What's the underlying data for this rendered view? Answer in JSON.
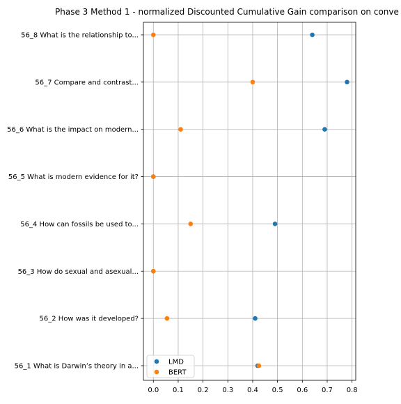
{
  "chart_data": {
    "type": "scatter",
    "title": "Phase 3 Method 1 - normalized Discounted Cumulative Gain comparison on conve",
    "xlabel": "",
    "ylabel": "",
    "xlim": [
      -0.04,
      0.815
    ],
    "xticks": [
      0.0,
      0.1,
      0.2,
      0.3,
      0.4,
      0.5,
      0.6,
      0.7,
      0.8
    ],
    "xtick_labels": [
      "0.0",
      "0.1",
      "0.2",
      "0.3",
      "0.4",
      "0.5",
      "0.6",
      "0.7",
      "0.8"
    ],
    "grid": true,
    "legend_position": "lower-left",
    "categories": [
      "56_1 What is Darwin’s theory in a...",
      "56_2 How was it developed?",
      "56_3 How do sexual and asexual...",
      "56_4 How can fossils be used to...",
      "56_5 What is modern evidence for it?",
      "56_6 What is the impact on modern...",
      "56_7 Compare and contrast...",
      "56_8 What is the relationship to..."
    ],
    "series": [
      {
        "name": "LMD",
        "color": "#1f77b4",
        "values": [
          0.42,
          0.41,
          0.0,
          0.49,
          0.0,
          0.69,
          0.78,
          0.64
        ]
      },
      {
        "name": "BERT",
        "color": "#ff7f0e",
        "values": [
          0.425,
          0.055,
          0.0,
          0.15,
          0.0,
          0.11,
          0.4,
          0.0
        ]
      }
    ]
  }
}
